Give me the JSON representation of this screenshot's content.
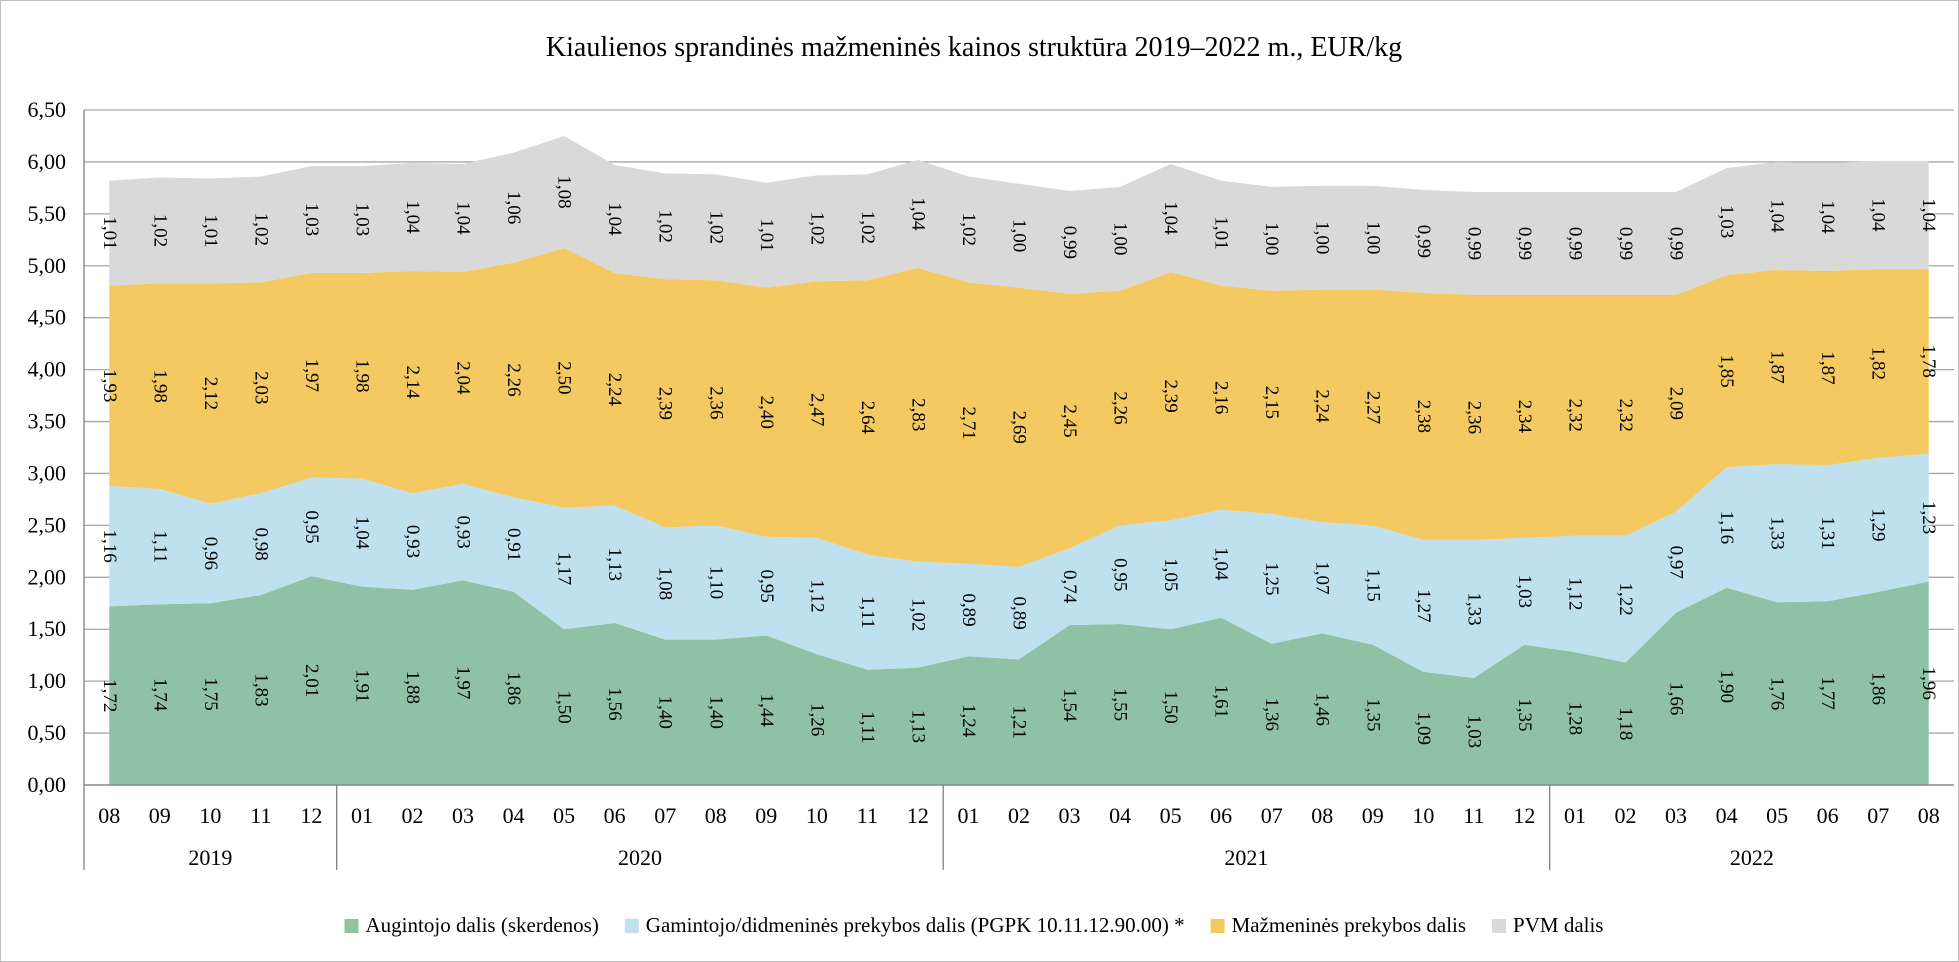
{
  "chart_data": {
    "type": "area",
    "stacked": true,
    "title": "Kiaulienos sprandinės mažmeninės kainos struktūra 2019–2022 m., EUR/kg",
    "xlabel": "",
    "ylabel": "",
    "ylim": [
      0,
      6.5
    ],
    "yticks": [
      "0,00",
      "0,50",
      "1,00",
      "1,50",
      "2,00",
      "2,50",
      "3,00",
      "3,50",
      "4,00",
      "4,50",
      "5,00",
      "5,50",
      "6,00",
      "6,50"
    ],
    "categories": [
      "08",
      "09",
      "10",
      "11",
      "12",
      "01",
      "02",
      "03",
      "04",
      "05",
      "06",
      "07",
      "08",
      "09",
      "10",
      "11",
      "12",
      "01",
      "02",
      "03",
      "04",
      "05",
      "06",
      "07",
      "08",
      "09",
      "10",
      "11",
      "12",
      "01",
      "02",
      "03",
      "04",
      "05",
      "06",
      "07",
      "08"
    ],
    "years": [
      {
        "label": "2019",
        "count": 5
      },
      {
        "label": "2020",
        "count": 12
      },
      {
        "label": "2021",
        "count": 12
      },
      {
        "label": "2022",
        "count": 8
      }
    ],
    "grid": true,
    "legend_position": "bottom",
    "series": [
      {
        "name": "Augintojo dalis (skerdenos)",
        "color": "#8fc1a5",
        "values": [
          1.72,
          1.74,
          1.75,
          1.83,
          2.01,
          1.91,
          1.88,
          1.97,
          1.86,
          1.5,
          1.56,
          1.4,
          1.4,
          1.44,
          1.26,
          1.11,
          1.13,
          1.24,
          1.21,
          1.54,
          1.55,
          1.5,
          1.61,
          1.36,
          1.46,
          1.35,
          1.09,
          1.03,
          1.35,
          1.28,
          1.18,
          1.66,
          1.9,
          1.76,
          1.77,
          1.86,
          1.96
        ],
        "labels": [
          "1,72",
          "1,74",
          "1,75",
          "1,83",
          "2,01",
          "1,91",
          "1,88",
          "1,97",
          "1,86",
          "1,50",
          "1,56",
          "1,40",
          "1,40",
          "1,44",
          "1,26",
          "1,11",
          "1,13",
          "1,24",
          "1,21",
          "1,54",
          "1,55",
          "1,50",
          "1,61",
          "1,36",
          "1,46",
          "1,35",
          "1,09",
          "1,03",
          "1,35",
          "1,28",
          "1,18",
          "1,66",
          "1,90",
          "1,76",
          "1,77",
          "1,86",
          "1,96"
        ]
      },
      {
        "name": "Gamintojo/didmeninės prekybos dalis (PGPK 10.11.12.90.00) *",
        "color": "#bfe0ee",
        "values": [
          1.16,
          1.11,
          0.96,
          0.98,
          0.95,
          1.04,
          0.93,
          0.93,
          0.91,
          1.17,
          1.13,
          1.08,
          1.1,
          0.95,
          1.12,
          1.11,
          1.02,
          0.89,
          0.89,
          0.74,
          0.95,
          1.05,
          1.04,
          1.25,
          1.07,
          1.15,
          1.27,
          1.33,
          1.03,
          1.12,
          1.22,
          0.97,
          1.16,
          1.33,
          1.31,
          1.29,
          1.23
        ],
        "labels": [
          "1,16",
          "1,11",
          "0,96",
          "0,98",
          "0,95",
          "1,04",
          "0,93",
          "0,93",
          "0,91",
          "1,17",
          "1,13",
          "1,08",
          "1,10",
          "0,95",
          "1,12",
          "1,11",
          "1,02",
          "0,89",
          "0,89",
          "0,74",
          "0,95",
          "1,05",
          "1,04",
          "1,25",
          "1,07",
          "1,15",
          "1,27",
          "1,33",
          "1,03",
          "1,12",
          "1,22",
          "0,97",
          "1,16",
          "1,33",
          "1,31",
          "1,29",
          "1,23"
        ]
      },
      {
        "name": "Mažmeninės prekybos dalis",
        "color": "#f4c962",
        "values": [
          1.93,
          1.98,
          2.12,
          2.03,
          1.97,
          1.98,
          2.14,
          2.04,
          2.26,
          2.5,
          2.24,
          2.39,
          2.36,
          2.4,
          2.47,
          2.64,
          2.83,
          2.71,
          2.69,
          2.45,
          2.26,
          2.39,
          2.16,
          2.15,
          2.24,
          2.27,
          2.38,
          2.36,
          2.34,
          2.32,
          2.32,
          2.09,
          1.85,
          1.87,
          1.87,
          1.82,
          1.78
        ],
        "labels": [
          "1,93",
          "1,98",
          "2,12",
          "2,03",
          "1,97",
          "1,98",
          "2,14",
          "2,04",
          "2,26",
          "2,50",
          "2,24",
          "2,39",
          "2,36",
          "2,40",
          "2,47",
          "2,64",
          "2,83",
          "2,71",
          "2,69",
          "2,45",
          "2,26",
          "2,39",
          "2,16",
          "2,15",
          "2,24",
          "2,27",
          "2,38",
          "2,36",
          "2,34",
          "2,32",
          "2,32",
          "2,09",
          "1,85",
          "1,87",
          "1,87",
          "1,82",
          "1,78"
        ]
      },
      {
        "name": "PVM dalis",
        "color": "#d9d9d9",
        "values": [
          1.01,
          1.02,
          1.01,
          1.02,
          1.03,
          1.03,
          1.04,
          1.04,
          1.06,
          1.08,
          1.04,
          1.02,
          1.02,
          1.01,
          1.02,
          1.02,
          1.04,
          1.02,
          1.0,
          0.99,
          1.0,
          1.04,
          1.01,
          1.0,
          1.0,
          1.0,
          0.99,
          0.99,
          0.99,
          0.99,
          0.99,
          0.99,
          1.03,
          1.04,
          1.04,
          1.04,
          1.04
        ],
        "labels": [
          "1,01",
          "1,02",
          "1,01",
          "1,02",
          "1,03",
          "1,03",
          "1,04",
          "1,04",
          "1,06",
          "1,08",
          "1,04",
          "1,02",
          "1,02",
          "1,01",
          "1,02",
          "1,02",
          "1,04",
          "1,02",
          "1,00",
          "0,99",
          "1,00",
          "1,04",
          "1,01",
          "1,00",
          "1,00",
          "1,00",
          "0,99",
          "0,99",
          "0,99",
          "0,99",
          "0,99",
          "0,99",
          "1,03",
          "1,04",
          "1,04",
          "1,04",
          "1,04"
        ]
      }
    ]
  }
}
